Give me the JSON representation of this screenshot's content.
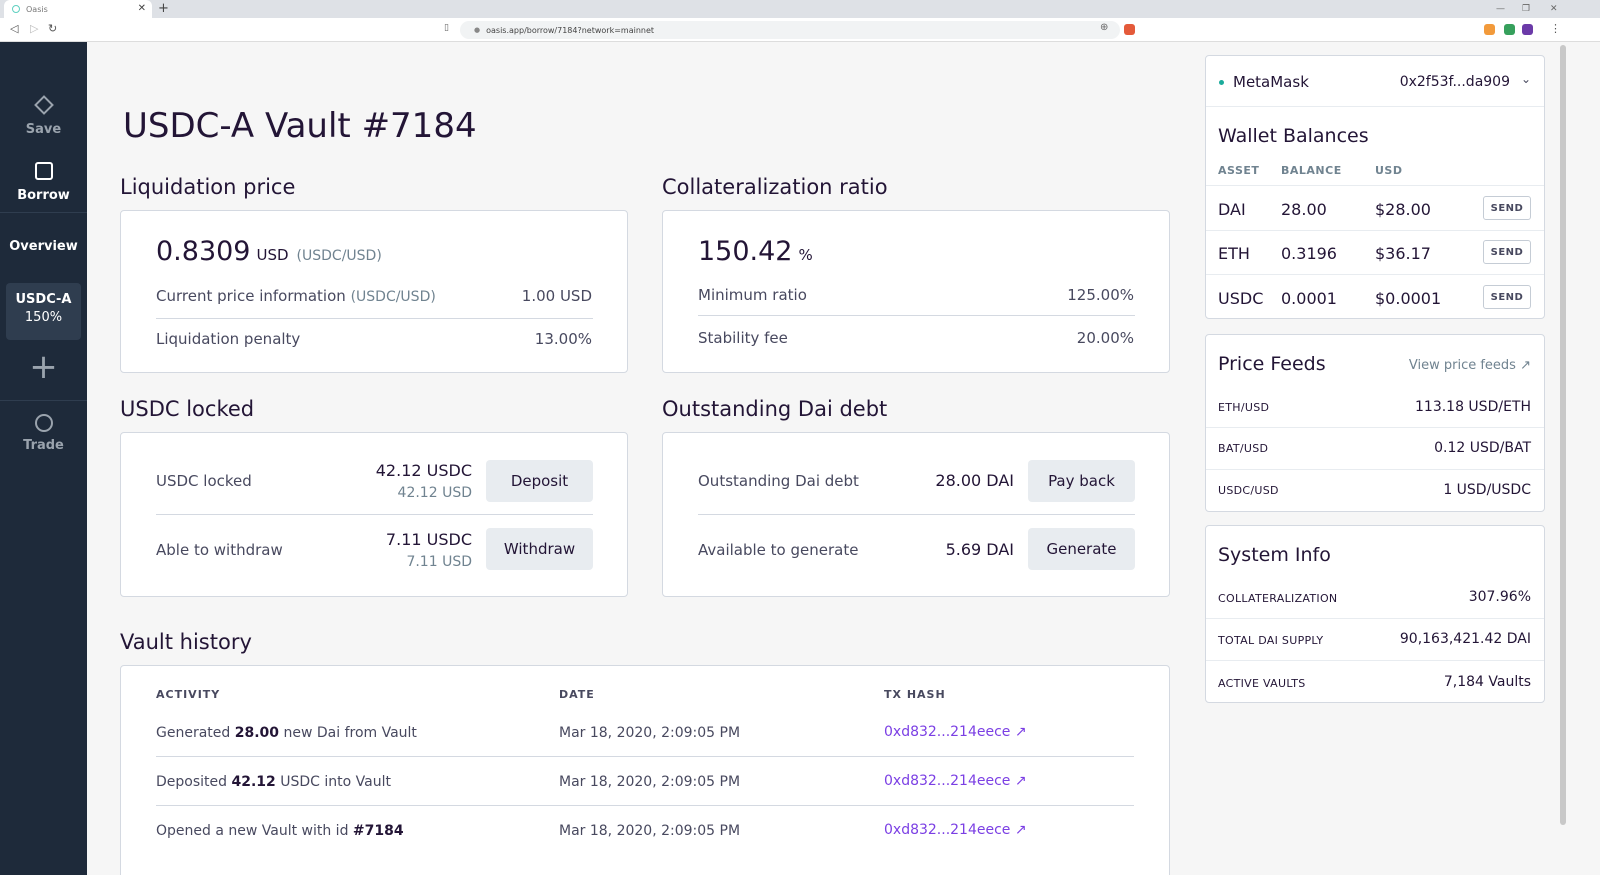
{
  "browser": {
    "tab_title": "Oasis",
    "url": "oasis.app/borrow/7184?network=mainnet"
  },
  "sidebar": {
    "save": "Save",
    "borrow": "Borrow",
    "overview": "Overview",
    "vault_name": "USDC-A",
    "vault_ratio": "150%",
    "trade": "Trade"
  },
  "page": {
    "title": "USDC-A Vault #7184"
  },
  "liquidation": {
    "section_title": "Liquidation price",
    "value": "0.8309",
    "unit": "USD",
    "pair": "(USDC/USD)",
    "current_price_label": "Current price information",
    "current_price_pair": "(USDC/USD)",
    "current_price_value": "1.00 USD",
    "penalty_label": "Liquidation penalty",
    "penalty_value": "13.00%"
  },
  "collateralization": {
    "section_title": "Collateralization ratio",
    "value": "150.42",
    "unit": "%",
    "min_label": "Minimum ratio",
    "min_value": "125.00%",
    "fee_label": "Stability fee",
    "fee_value": "20.00%"
  },
  "locked": {
    "section_title": "USDC locked",
    "locked_label": "USDC locked",
    "locked_amount": "42.12 USDC",
    "locked_usd": "42.12 USD",
    "deposit_button": "Deposit",
    "withdraw_label": "Able to withdraw",
    "withdraw_amount": "7.11 USDC",
    "withdraw_usd": "7.11 USD",
    "withdraw_button": "Withdraw"
  },
  "debt": {
    "section_title": "Outstanding Dai debt",
    "debt_label": "Outstanding Dai debt",
    "debt_amount": "28.00 DAI",
    "payback_button": "Pay back",
    "generate_label": "Available to generate",
    "generate_amount": "5.69 DAI",
    "generate_button": "Generate"
  },
  "history": {
    "section_title": "Vault history",
    "col_activity": "ACTIVITY",
    "col_date": "DATE",
    "col_tx": "TX HASH",
    "rows": [
      {
        "pre": "Generated ",
        "bold": "28.00",
        "post": " new Dai from Vault",
        "date": "Mar 18, 2020, 2:09:05 PM",
        "tx": "0xd832...214eece"
      },
      {
        "pre": "Deposited ",
        "bold": "42.12",
        "post": " USDC into Vault",
        "date": "Mar 18, 2020, 2:09:05 PM",
        "tx": "0xd832...214eece"
      },
      {
        "pre": "Opened a new Vault with id ",
        "bold": "#7184",
        "post": "",
        "date": "Mar 18, 2020, 2:09:05 PM",
        "tx": "0xd832...214eece"
      }
    ]
  },
  "wallet": {
    "provider": "MetaMask",
    "address": "0x2f53f...da909",
    "balances_title": "Wallet Balances",
    "col_asset": "ASSET",
    "col_balance": "BALANCE",
    "col_usd": "USD",
    "send_label": "SEND",
    "rows": [
      {
        "asset": "DAI",
        "balance": "28.00",
        "usd": "$28.00"
      },
      {
        "asset": "ETH",
        "balance": "0.3196",
        "usd": "$36.17"
      },
      {
        "asset": "USDC",
        "balance": "0.0001",
        "usd": "$0.0001"
      }
    ]
  },
  "price_feeds": {
    "title": "Price Feeds",
    "view_link": "View price feeds",
    "rows": [
      {
        "pair": "ETH/USD",
        "value": "113.18 USD/ETH"
      },
      {
        "pair": "BAT/USD",
        "value": "0.12 USD/BAT"
      },
      {
        "pair": "USDC/USD",
        "value": "1 USD/USDC"
      }
    ]
  },
  "system_info": {
    "title": "System Info",
    "rows": [
      {
        "label": "COLLATERALIZATION",
        "value": "307.96%"
      },
      {
        "label": "TOTAL DAI SUPPLY",
        "value": "90,163,421.42 DAI"
      },
      {
        "label": "ACTIVE VAULTS",
        "value": "7,184 Vaults"
      }
    ]
  },
  "colors": {
    "sidebar_bg": "#1e2a3a",
    "link": "#7b3fe4",
    "metamask_dot": "#1aab9b"
  }
}
